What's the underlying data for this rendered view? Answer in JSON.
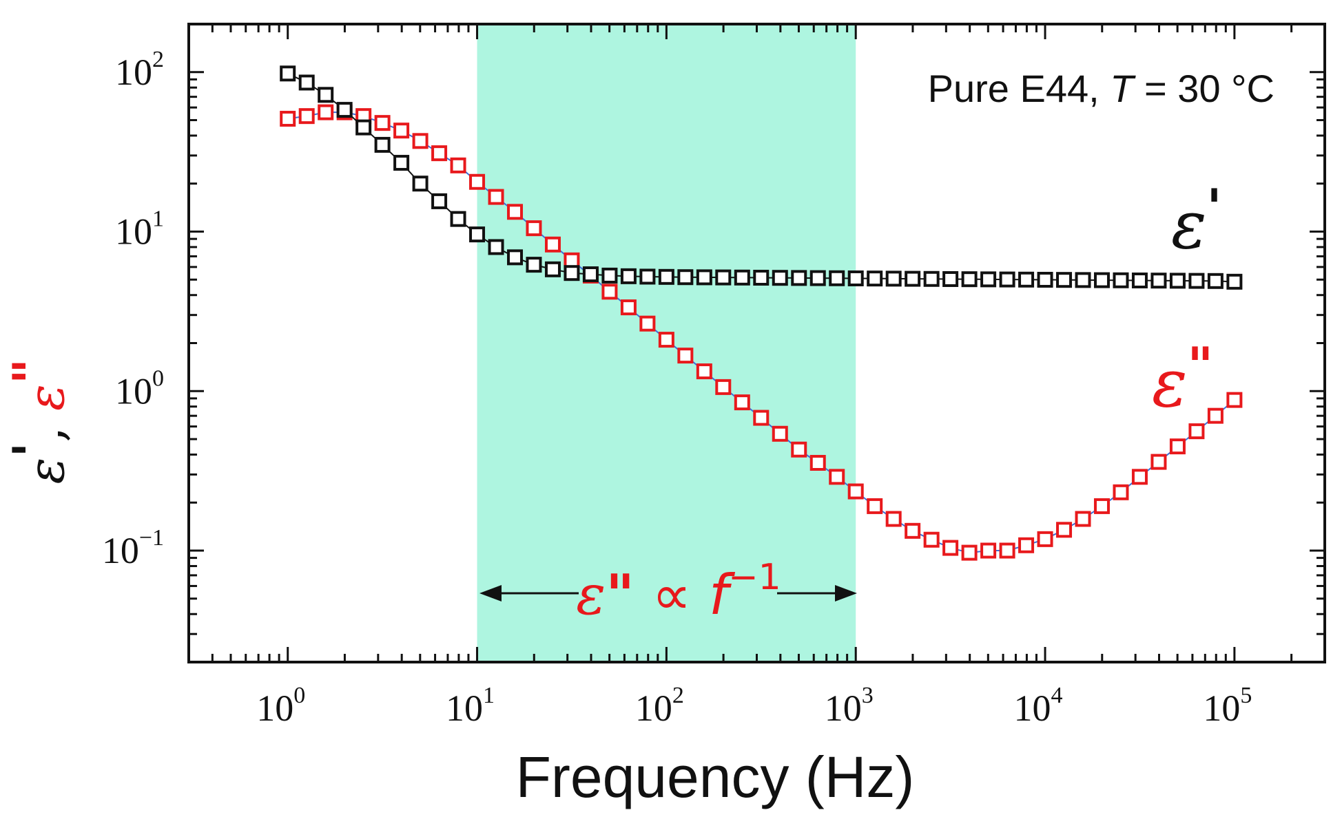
{
  "chart_data": {
    "type": "scatter",
    "title": "",
    "xlabel": "Frequency (Hz)",
    "ylabel": "ε', ε\"",
    "ylabel_parts": [
      "ε",
      "'",
      ",  ",
      "ε",
      "\""
    ],
    "xscale": "log",
    "yscale": "log",
    "xlim": [
      0.3,
      300000
    ],
    "ylim": [
      0.02,
      200
    ],
    "x_ticks": [
      {
        "base": "10",
        "exp": "0",
        "value": 1
      },
      {
        "base": "10",
        "exp": "1",
        "value": 10
      },
      {
        "base": "10",
        "exp": "2",
        "value": 100
      },
      {
        "base": "10",
        "exp": "3",
        "value": 1000
      },
      {
        "base": "10",
        "exp": "4",
        "value": 10000
      },
      {
        "base": "10",
        "exp": "5",
        "value": 100000
      }
    ],
    "y_ticks": [
      {
        "base": "10",
        "exp": "−1",
        "value": 0.1
      },
      {
        "base": "10",
        "exp": "0",
        "value": 1
      },
      {
        "base": "10",
        "exp": "1",
        "value": 10
      },
      {
        "base": "10",
        "exp": "2",
        "value": 100
      }
    ],
    "shaded_region": {
      "x_range": [
        10,
        1000
      ],
      "color": "#aef5e0"
    },
    "annotations": {
      "condition_prefix": "Pure E44, ",
      "condition_var": "T",
      "condition_suffix": " = 30 °C",
      "scaling_eps": "ε",
      "scaling_prime": "\"",
      "scaling_prop": " ∝ ",
      "scaling_f": "f",
      "scaling_exp": "−1"
    },
    "series": [
      {
        "name": "ε'",
        "label_main": "ε",
        "label_prime": "'",
        "color": "#111111",
        "x": [
          1,
          1.259,
          1.585,
          1.995,
          2.512,
          3.162,
          3.981,
          5.012,
          6.31,
          7.943,
          10,
          12.59,
          15.85,
          19.95,
          25.12,
          31.62,
          39.81,
          50.12,
          63.1,
          79.43,
          100,
          125.9,
          158.5,
          199.5,
          251.2,
          316.2,
          398.1,
          501.2,
          631,
          794.3,
          1000,
          1259,
          1585,
          1995,
          2512,
          3162,
          3981,
          5012,
          6310,
          7943,
          10000,
          12590,
          15850,
          19950,
          25120,
          31620,
          39810,
          50120,
          63100,
          79430,
          100000
        ],
        "values": [
          98,
          86,
          72,
          58,
          45,
          35,
          27,
          20,
          15.5,
          12,
          9.6,
          8.0,
          6.9,
          6.2,
          5.8,
          5.5,
          5.4,
          5.3,
          5.25,
          5.22,
          5.2,
          5.18,
          5.17,
          5.16,
          5.15,
          5.14,
          5.13,
          5.12,
          5.11,
          5.1,
          5.09,
          5.08,
          5.07,
          5.06,
          5.05,
          5.04,
          5.03,
          5.02,
          5.01,
          5.0,
          4.99,
          4.98,
          4.97,
          4.96,
          4.95,
          4.94,
          4.93,
          4.92,
          4.91,
          4.9,
          4.85
        ]
      },
      {
        "name": "ε\"",
        "label_main": "ε",
        "label_prime": "\"",
        "color": "#e8191c",
        "x": [
          1,
          1.259,
          1.585,
          1.995,
          2.512,
          3.162,
          3.981,
          5.012,
          6.31,
          7.943,
          10,
          12.59,
          15.85,
          19.95,
          25.12,
          31.62,
          39.81,
          50.12,
          63.1,
          79.43,
          100,
          125.9,
          158.5,
          199.5,
          251.2,
          316.2,
          398.1,
          501.2,
          631,
          794.3,
          1000,
          1259,
          1585,
          1995,
          2512,
          3162,
          3981,
          5012,
          6310,
          7943,
          10000,
          12590,
          15850,
          19950,
          25120,
          31620,
          39810,
          50120,
          63100,
          79430,
          100000
        ],
        "values": [
          51,
          53,
          56,
          56,
          53,
          48,
          43,
          37,
          31,
          26,
          20.5,
          16.5,
          13.3,
          10.5,
          8.3,
          6.6,
          5.3,
          4.2,
          3.35,
          2.65,
          2.1,
          1.67,
          1.33,
          1.06,
          0.85,
          0.68,
          0.54,
          0.43,
          0.355,
          0.29,
          0.235,
          0.19,
          0.158,
          0.133,
          0.117,
          0.104,
          0.097,
          0.1,
          0.1,
          0.108,
          0.118,
          0.135,
          0.158,
          0.19,
          0.232,
          0.29,
          0.36,
          0.45,
          0.56,
          0.7,
          0.88
        ]
      }
    ]
  }
}
